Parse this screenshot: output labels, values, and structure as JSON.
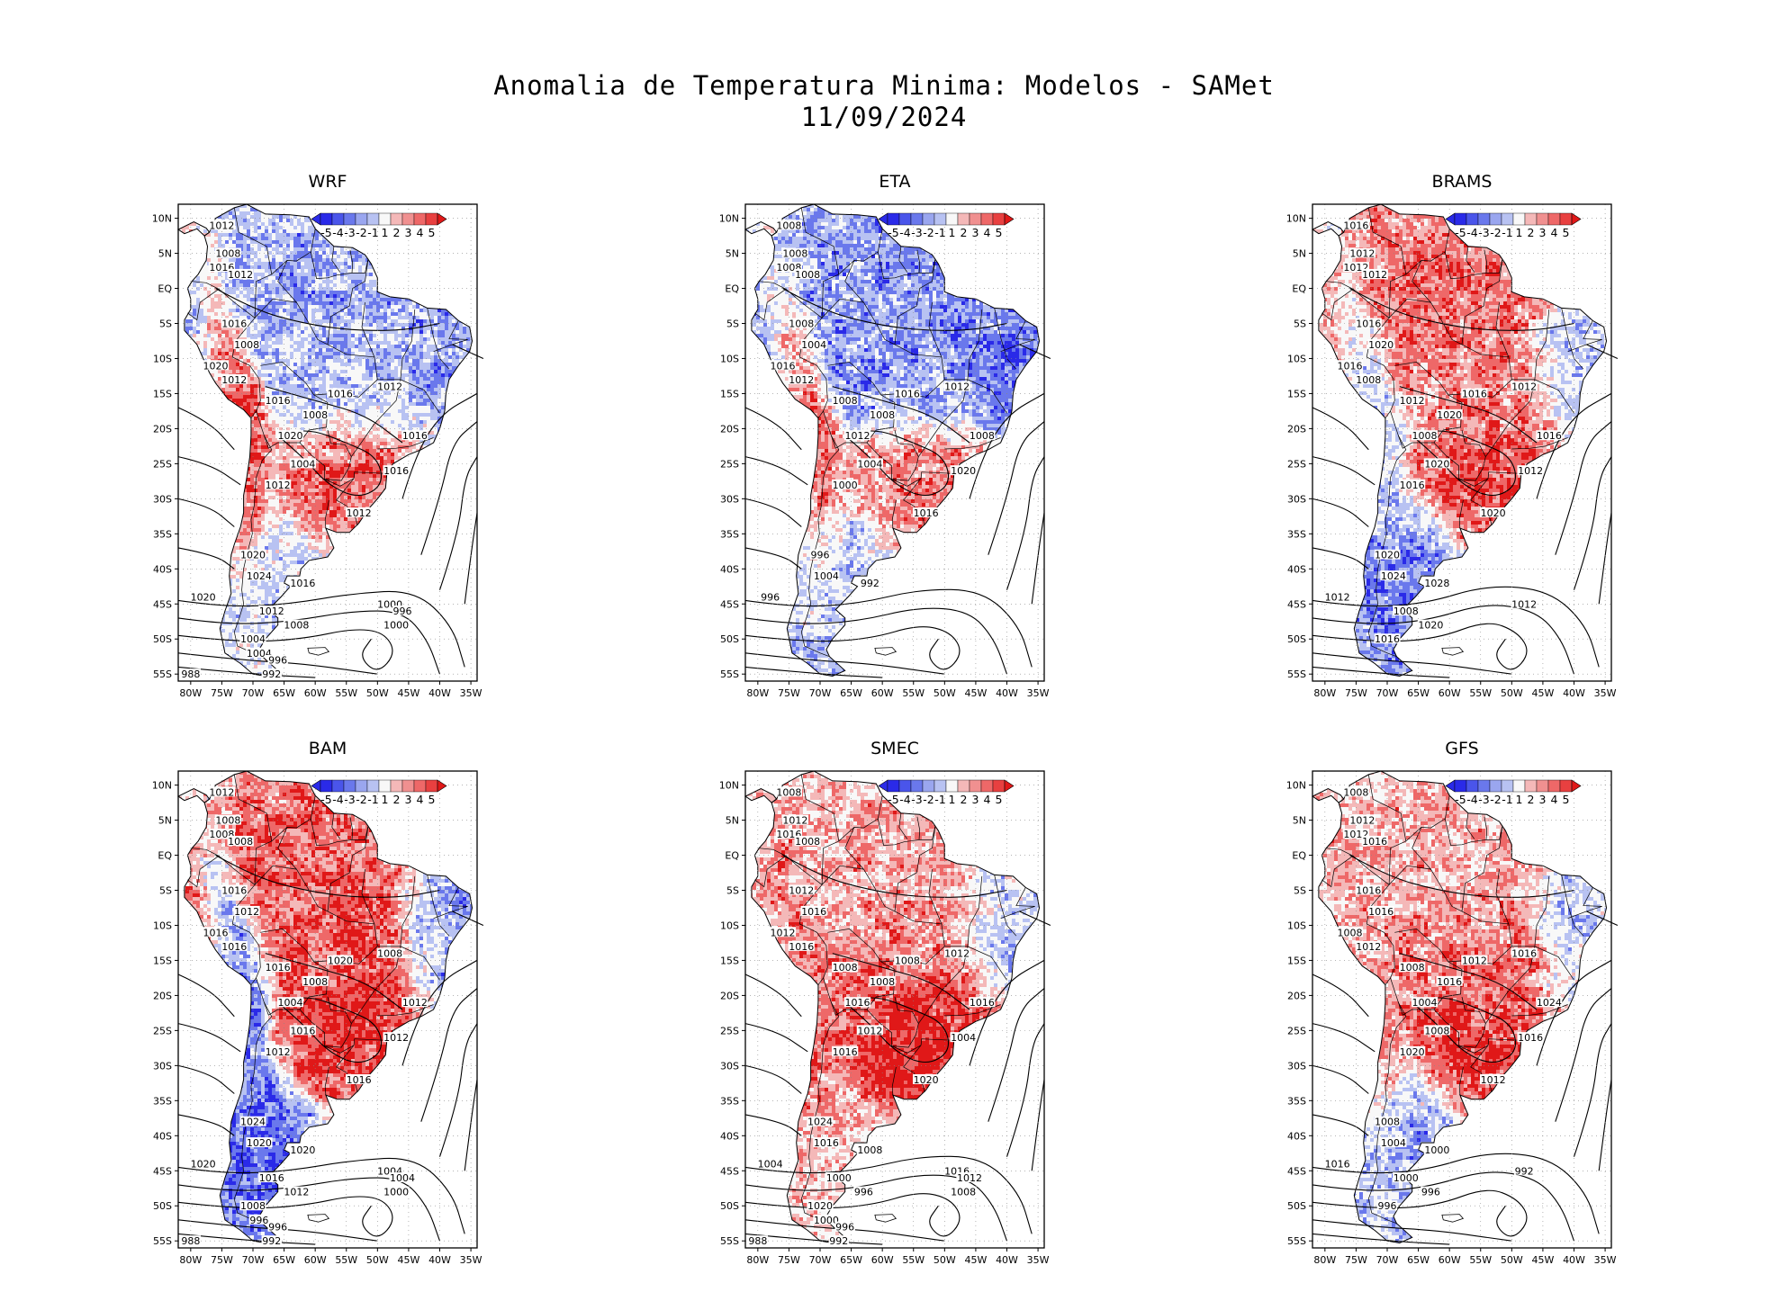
{
  "header": {
    "title": "Anomalia de Temperatura Minima: Modelos - SAMet",
    "date": "11/09/2024"
  },
  "colors": {
    "strong_cold": "#2a2ae8",
    "cold": "#6a78ec",
    "weak_cold": "#b8c2f2",
    "neutral": "#f8f8f8",
    "weak_warm": "#f4b8b8",
    "warm": "#ee6868",
    "strong_warm": "#e01818",
    "ocean": "#ffffff",
    "contour": "#000000"
  },
  "colorbar": {
    "classes": [
      "<-5",
      "-5",
      "-4",
      "-3",
      "-2",
      "-1",
      "1",
      "2",
      "3",
      "4",
      "5",
      ">5"
    ],
    "labels": [
      "-5",
      "-4",
      "-3",
      "-2",
      "-1",
      "1",
      "2",
      "3",
      "4",
      "5"
    ]
  },
  "chart_data": [
    {
      "type": "heatmap",
      "title": "WRF",
      "xticks": [
        "80W",
        "75W",
        "70W",
        "65W",
        "60W",
        "55W",
        "50W",
        "45W",
        "40W",
        "35W"
      ],
      "yticks": [
        "10N",
        "5N",
        "EQ",
        "5S",
        "10S",
        "15S",
        "20S",
        "25S",
        "30S",
        "35S",
        "40S",
        "45S",
        "50S",
        "55S"
      ],
      "xlim": [
        -82,
        -34
      ],
      "ylim": [
        -56,
        12
      ],
      "anomaly_pattern": {
        "north": -2.0,
        "northeast": -2.5,
        "central": -1.5,
        "south_brazil": 3.5,
        "patagonia": -1.0,
        "andes": 4.0
      },
      "isobars_hpa": [
        "1012",
        "1008",
        "1016",
        "1012",
        "1016",
        "1008",
        "1020",
        "1012",
        "1016",
        "1008",
        "1012",
        "1016",
        "1020",
        "1004",
        "1016",
        "1012",
        "1016",
        "1012",
        "1020",
        "1024",
        "1016",
        "1020",
        "1012",
        "1008",
        "1004",
        "1000",
        "996",
        "1000",
        "1004",
        "996",
        "992",
        "988"
      ]
    },
    {
      "type": "heatmap",
      "title": "ETA",
      "xticks": [
        "80W",
        "75W",
        "70W",
        "65W",
        "60W",
        "55W",
        "50W",
        "45W",
        "40W",
        "35W"
      ],
      "yticks": [
        "10N",
        "5N",
        "EQ",
        "5S",
        "10S",
        "15S",
        "20S",
        "25S",
        "30S",
        "35S",
        "40S",
        "45S",
        "50S",
        "55S"
      ],
      "xlim": [
        -82,
        -34
      ],
      "ylim": [
        -56,
        12
      ],
      "anomaly_pattern": {
        "north": -2.5,
        "northeast": -3.5,
        "central": -2.5,
        "south_brazil": 3.0,
        "patagonia": -1.5,
        "andes": 3.0
      },
      "isobars_hpa": [
        "1008",
        "1008",
        "1008",
        "1008",
        "1008",
        "1004",
        "1016",
        "1012",
        "1008",
        "1008",
        "1012",
        "1016",
        "1012",
        "1004",
        "1020",
        "1000",
        "1008",
        "1016",
        "996",
        "1004",
        "992",
        "996"
      ]
    },
    {
      "type": "heatmap",
      "title": "BRAMS",
      "xticks": [
        "80W",
        "75W",
        "70W",
        "65W",
        "60W",
        "55W",
        "50W",
        "45W",
        "40W",
        "35W"
      ],
      "yticks": [
        "10N",
        "5N",
        "EQ",
        "5S",
        "10S",
        "15S",
        "20S",
        "25S",
        "30S",
        "35S",
        "40S",
        "45S",
        "50S",
        "55S"
      ],
      "xlim": [
        -82,
        -34
      ],
      "ylim": [
        -56,
        12
      ],
      "anomaly_pattern": {
        "north": 3.0,
        "northeast": -2.0,
        "central": 2.5,
        "south_brazil": 4.0,
        "patagonia": -3.5,
        "andes": -1.5
      },
      "isobars_hpa": [
        "1016",
        "1012",
        "1012",
        "1012",
        "1016",
        "1020",
        "1016",
        "1008",
        "1012",
        "1020",
        "1012",
        "1016",
        "1008",
        "1020",
        "1012",
        "1016",
        "1016",
        "1020",
        "1020",
        "1024",
        "1028",
        "1012",
        "1008",
        "1020",
        "1016",
        "1012"
      ]
    },
    {
      "type": "heatmap",
      "title": "BAM",
      "xticks": [
        "80W",
        "75W",
        "70W",
        "65W",
        "60W",
        "55W",
        "50W",
        "45W",
        "40W",
        "35W"
      ],
      "yticks": [
        "10N",
        "5N",
        "EQ",
        "5S",
        "10S",
        "15S",
        "20S",
        "25S",
        "30S",
        "35S",
        "40S",
        "45S",
        "50S",
        "55S"
      ],
      "xlim": [
        -82,
        -34
      ],
      "ylim": [
        -56,
        12
      ],
      "anomaly_pattern": {
        "north": 3.5,
        "northeast": -3.0,
        "central": 4.0,
        "south_brazil": 4.5,
        "patagonia": -4.0,
        "andes": -3.0
      },
      "isobars_hpa": [
        "1012",
        "1008",
        "1008",
        "1008",
        "1016",
        "1012",
        "1016",
        "1016",
        "1016",
        "1008",
        "1008",
        "1020",
        "1004",
        "1016",
        "1012",
        "1012",
        "1012",
        "1016",
        "1024",
        "1020",
        "1020",
        "1020",
        "1016",
        "1012",
        "1008",
        "1004",
        "1004",
        "1000",
        "996",
        "996",
        "992",
        "988"
      ]
    },
    {
      "type": "heatmap",
      "title": "SMEC",
      "xticks": [
        "80W",
        "75W",
        "70W",
        "65W",
        "60W",
        "55W",
        "50W",
        "45W",
        "40W",
        "35W"
      ],
      "yticks": [
        "10N",
        "5N",
        "EQ",
        "5S",
        "10S",
        "15S",
        "20S",
        "25S",
        "30S",
        "35S",
        "40S",
        "45S",
        "50S",
        "55S"
      ],
      "xlim": [
        -82,
        -34
      ],
      "ylim": [
        -56,
        12
      ],
      "anomaly_pattern": {
        "north": 2.0,
        "northeast": -1.5,
        "central": 3.0,
        "south_brazil": 5.0,
        "patagonia": 1.5,
        "andes": 3.0
      },
      "isobars_hpa": [
        "1008",
        "1012",
        "1016",
        "1008",
        "1012",
        "1016",
        "1012",
        "1016",
        "1008",
        "1008",
        "1012",
        "1008",
        "1016",
        "1012",
        "1004",
        "1016",
        "1016",
        "1020",
        "1024",
        "1016",
        "1008",
        "1004",
        "1000",
        "996",
        "1020",
        "1016",
        "1012",
        "1008",
        "1000",
        "996",
        "992",
        "988"
      ]
    },
    {
      "type": "heatmap",
      "title": "GFS",
      "xticks": [
        "80W",
        "75W",
        "70W",
        "65W",
        "60W",
        "55W",
        "50W",
        "45W",
        "40W",
        "35W"
      ],
      "yticks": [
        "10N",
        "5N",
        "EQ",
        "5S",
        "10S",
        "15S",
        "20S",
        "25S",
        "30S",
        "35S",
        "40S",
        "45S",
        "50S",
        "55S"
      ],
      "xlim": [
        -82,
        -34
      ],
      "ylim": [
        -56,
        12
      ],
      "anomaly_pattern": {
        "north": 2.0,
        "northeast": -1.5,
        "central": 3.0,
        "south_brazil": 4.5,
        "patagonia": -2.0,
        "andes": 2.5
      },
      "isobars_hpa": [
        "1008",
        "1012",
        "1012",
        "1016",
        "1016",
        "1016",
        "1008",
        "1012",
        "1008",
        "1016",
        "1016",
        "1012",
        "1004",
        "1008",
        "1016",
        "1020",
        "1024",
        "1012",
        "1008",
        "1004",
        "1000",
        "1016",
        "1000",
        "996",
        "996",
        "992"
      ]
    }
  ]
}
